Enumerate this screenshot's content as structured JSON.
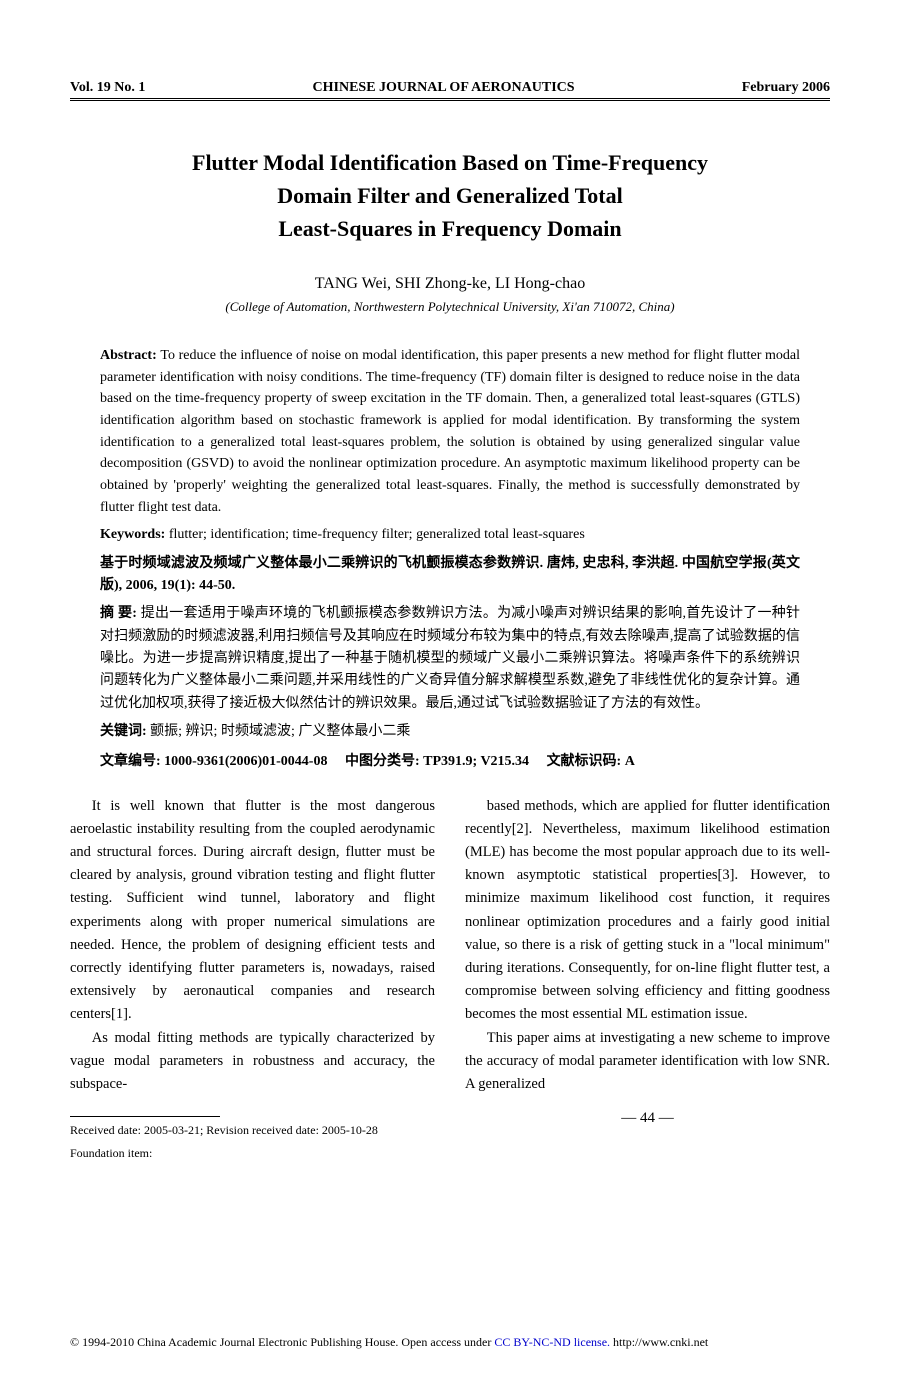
{
  "header": {
    "left": "Vol. 19 No. 1",
    "center": "CHINESE JOURNAL OF AERONAUTICS",
    "right": "February 2006"
  },
  "title_lines": [
    "Flutter Modal Identification Based on Time-Frequency",
    "Domain Filter and Generalized Total",
    "Least-Squares in Frequency Domain"
  ],
  "authors": "TANG Wei, SHI Zhong-ke, LI Hong-chao",
  "affiliation": "(College of Automation, Northwestern Polytechnical University, Xi'an 710072, China)",
  "abstract_label": "Abstract: ",
  "abstract": "To reduce the influence of noise on modal identification, this paper presents a new method for flight flutter modal parameter identification with noisy conditions. The time-frequency (TF) domain filter is designed to reduce noise in the data based on the time-frequency property of sweep excitation in the TF domain. Then, a generalized total least-squares (GTLS) identification algorithm based on stochastic framework is applied for modal identification. By transforming the system identification to a generalized total least-squares problem, the solution is obtained by using generalized singular value decomposition (GSVD) to avoid the nonlinear optimization procedure. An asymptotic maximum likelihood property can be obtained by 'properly' weighting the generalized total least-squares. Finally, the method is successfully demonstrated by flutter flight test data.",
  "keywords_label": "Keywords: ",
  "keywords": "flutter; identification; time-frequency filter; generalized total least-squares",
  "chinese_title": "基于时频域滤波及频域广义整体最小二乘辨识的飞机颤振模态参数辨识. 唐炜, 史忠科, 李洪超. 中国航空学报(英文版), 2006, 19(1): 44-50.",
  "chinese_abstract_label": "摘 要: ",
  "chinese_abstract": "提出一套适用于噪声环境的飞机颤振模态参数辨识方法。为减小噪声对辨识结果的影响,首先设计了一种针对扫频激励的时频滤波器,利用扫频信号及其响应在时频域分布较为集中的特点,有效去除噪声,提高了试验数据的信噪比。为进一步提高辨识精度,提出了一种基于随机模型的频域广义最小二乘辨识算法。将噪声条件下的系统辨识问题转化为广义整体最小二乘问题,并采用线性的广义奇异值分解求解模型系数,避免了非线性优化的复杂计算。通过优化加权项,获得了接近极大似然估计的辨识效果。最后,通过试飞试验数据验证了方法的有效性。",
  "chinese_keywords_label": "关键词: ",
  "chinese_keywords": "颤振; 辨识; 时频域滤波; 广义整体最小二乘",
  "chinese_meta": {
    "article_no": "文章编号: 1000-9361(2006)01-0044-08",
    "clc": "中图分类号: TP391.9; V215.34",
    "doc_code": "文献标识码: A"
  },
  "body": {
    "col1_p1": "It is well known that flutter is the most dangerous aeroelastic instability resulting from the coupled aerodynamic and structural forces. During aircraft design, flutter must be cleared by analysis, ground vibration testing and flight flutter testing. Sufficient wind tunnel, laboratory and flight experiments along with proper numerical simulations are needed. Hence, the problem of designing efficient tests and correctly identifying flutter parameters is, nowadays, raised extensively by aeronautical companies and research centers[1].",
    "col1_p2": "As modal fitting methods are typically characterized by vague modal parameters in robustness and accuracy, the subspace-",
    "col2_p1": "based methods, which are applied for flutter identification recently[2]. Nevertheless, maximum likelihood estimation (MLE) has become the most popular approach due to its well-known asymptotic statistical properties[3]. However, to minimize maximum likelihood cost function, it requires nonlinear optimization procedures and a fairly good initial value, so there is a risk of getting stuck in a \"local minimum\" during iterations. Consequently, for on-line flight flutter test, a compromise between solving efficiency and fitting goodness becomes the most essential ML estimation issue.",
    "col2_p2": "This paper aims at investigating a new scheme to improve the accuracy of modal parameter identification with low SNR. A generalized"
  },
  "corner": "— 44 —",
  "footnote": {
    "received": "Received date: 2005-03-21; Revision received date: 2005-10-28",
    "foundation": "Foundation item:"
  },
  "footer": {
    "prefix": "© 1994-2010 China Academic Journal Electronic Publishing House. Open access under ",
    "link": "CC BY-NC-ND license.",
    "suffix": " http://www.cnki.net"
  }
}
